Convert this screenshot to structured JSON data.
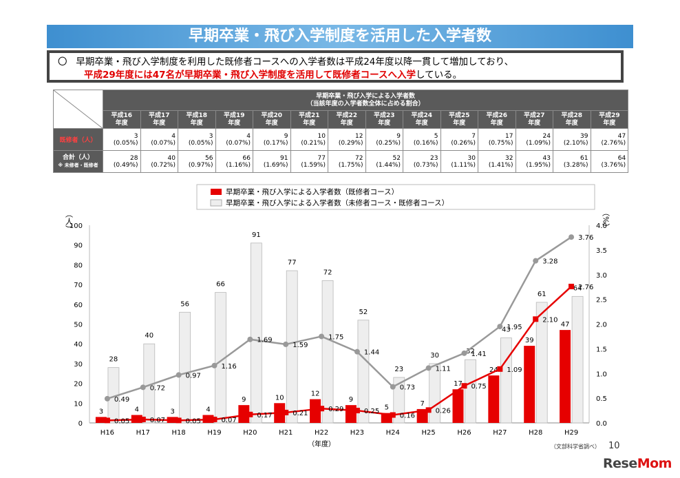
{
  "title": "早期卒業・飛び入学制度を活用した入学者数",
  "summary": {
    "bullet": "〇",
    "line1": "早期卒業・飛び入学制度を利用した既修者コースへの入学者数は平成24年度以降一貫して増加しており、",
    "line2_red": "平成29年度には47名が早期卒業・飛び入学制度を活用して既修者コースへ入学",
    "line2_tail": "している。"
  },
  "table": {
    "header_line1": "早期卒業・飛び入学による入学者数",
    "header_line2": "（当該年度の入学者数全体に占める割合）",
    "years": [
      {
        "a": "平成16",
        "b": "年度"
      },
      {
        "a": "平成17",
        "b": "年度"
      },
      {
        "a": "平成18",
        "b": "年度"
      },
      {
        "a": "平成19",
        "b": "年度"
      },
      {
        "a": "平成20",
        "b": "年度"
      },
      {
        "a": "平成21",
        "b": "年度"
      },
      {
        "a": "平成22",
        "b": "年度"
      },
      {
        "a": "平成23",
        "b": "年度"
      },
      {
        "a": "平成24",
        "b": "年度"
      },
      {
        "a": "平成25",
        "b": "年度"
      },
      {
        "a": "平成26",
        "b": "年度"
      },
      {
        "a": "平成27",
        "b": "年度"
      },
      {
        "a": "平成28",
        "b": "年度"
      },
      {
        "a": "平成29",
        "b": "年度"
      }
    ],
    "row1_label": "既修者（人）",
    "row1": [
      {
        "n": "3",
        "p": "(0.05%)"
      },
      {
        "n": "4",
        "p": "(0.07%)"
      },
      {
        "n": "3",
        "p": "(0.05%)"
      },
      {
        "n": "4",
        "p": "(0.07%)"
      },
      {
        "n": "9",
        "p": "(0.17%)"
      },
      {
        "n": "10",
        "p": "(0.21%)"
      },
      {
        "n": "12",
        "p": "(0.29%)"
      },
      {
        "n": "9",
        "p": "(0.25%)"
      },
      {
        "n": "5",
        "p": "(0.16%)"
      },
      {
        "n": "7",
        "p": "(0.26%)"
      },
      {
        "n": "17",
        "p": "(0.75%)"
      },
      {
        "n": "24",
        "p": "(1.09%)"
      },
      {
        "n": "39",
        "p": "(2.10%)"
      },
      {
        "n": "47",
        "p": "(2.76%)"
      }
    ],
    "row2_label": "合計（人）",
    "row2_note": "※ 未修者・既修者",
    "row2": [
      {
        "n": "28",
        "p": "(0.49%)"
      },
      {
        "n": "40",
        "p": "(0.72%)"
      },
      {
        "n": "56",
        "p": "(0.97%)"
      },
      {
        "n": "66",
        "p": "(1.16%)"
      },
      {
        "n": "91",
        "p": "(1.69%)"
      },
      {
        "n": "77",
        "p": "(1.59%)"
      },
      {
        "n": "72",
        "p": "(1.75%)"
      },
      {
        "n": "52",
        "p": "(1.44%)"
      },
      {
        "n": "23",
        "p": "(0.73%)"
      },
      {
        "n": "30",
        "p": "(1.11%)"
      },
      {
        "n": "32",
        "p": "(1.41%)"
      },
      {
        "n": "43",
        "p": "(1.95%)"
      },
      {
        "n": "61",
        "p": "(3.28%)"
      },
      {
        "n": "64",
        "p": "(3.76%)"
      }
    ]
  },
  "chart_data": {
    "type": "bar",
    "categories": [
      "H16",
      "H17",
      "H18",
      "H19",
      "H20",
      "H21",
      "H22",
      "H23",
      "H24",
      "H25",
      "H26",
      "H27",
      "H28",
      "H29"
    ],
    "xlabel": "（年度）",
    "ylabel_left": "（人）",
    "ylabel_right": "（%）",
    "ylim_left": [
      0,
      100
    ],
    "yticks_left": [
      "0",
      "10",
      "20",
      "30",
      "40",
      "50",
      "60",
      "70",
      "80",
      "90",
      "100"
    ],
    "ylim_right": [
      0,
      4.0
    ],
    "yticks_right": [
      "0.0",
      "0.5",
      "1.0",
      "1.5",
      "2.0",
      "2.5",
      "3.0",
      "3.5",
      "4.0"
    ],
    "legend": [
      "早期卒業・飛び入学による入学者数（既修者コース）",
      "早期卒業・飛び入学による入学者数（未修者コース・既修者コース）"
    ],
    "legend_position": "top",
    "series": [
      {
        "name": "早期卒業・飛び入学による入学者数（既修者コース）",
        "kind": "bar",
        "axis": "left",
        "color": "#e60000",
        "values": [
          3,
          4,
          3,
          4,
          9,
          10,
          12,
          9,
          5,
          7,
          17,
          24,
          39,
          47
        ]
      },
      {
        "name": "早期卒業・飛び入学による入学者数（未修者コース・既修者コース）",
        "kind": "bar",
        "axis": "left",
        "color": "#eeeeee",
        "values": [
          28,
          40,
          56,
          66,
          91,
          77,
          72,
          52,
          23,
          30,
          32,
          43,
          61,
          64
        ]
      },
      {
        "kind": "line",
        "axis": "right",
        "color": "#e60000",
        "values": [
          0.05,
          0.07,
          0.05,
          0.07,
          0.17,
          0.21,
          0.29,
          0.25,
          0.16,
          0.26,
          0.75,
          1.09,
          2.1,
          2.76
        ],
        "labels": [
          "0.05",
          "0.07",
          "0.05",
          "0.07",
          "0.17",
          "0.21",
          "0.29",
          "0.25",
          "0.16",
          "0.26",
          "0.75",
          "1.09",
          "2.10",
          "2.76"
        ]
      },
      {
        "kind": "line",
        "axis": "right",
        "color": "#999999",
        "values": [
          0.49,
          0.72,
          0.97,
          1.16,
          1.69,
          1.59,
          1.75,
          1.44,
          0.73,
          1.11,
          1.41,
          1.95,
          3.28,
          3.76
        ],
        "labels": [
          "0.49",
          "0.72",
          "0.97",
          "1.16",
          "1.69",
          "1.59",
          "1.75",
          "1.44",
          "0.73",
          "1.11",
          "1.41",
          "1.95",
          "3.28",
          "3.76"
        ]
      }
    ]
  },
  "footer": {
    "source": "（文部科学省調べ）",
    "page": "10",
    "logo_a": "Rese",
    "logo_b": "Mom"
  }
}
